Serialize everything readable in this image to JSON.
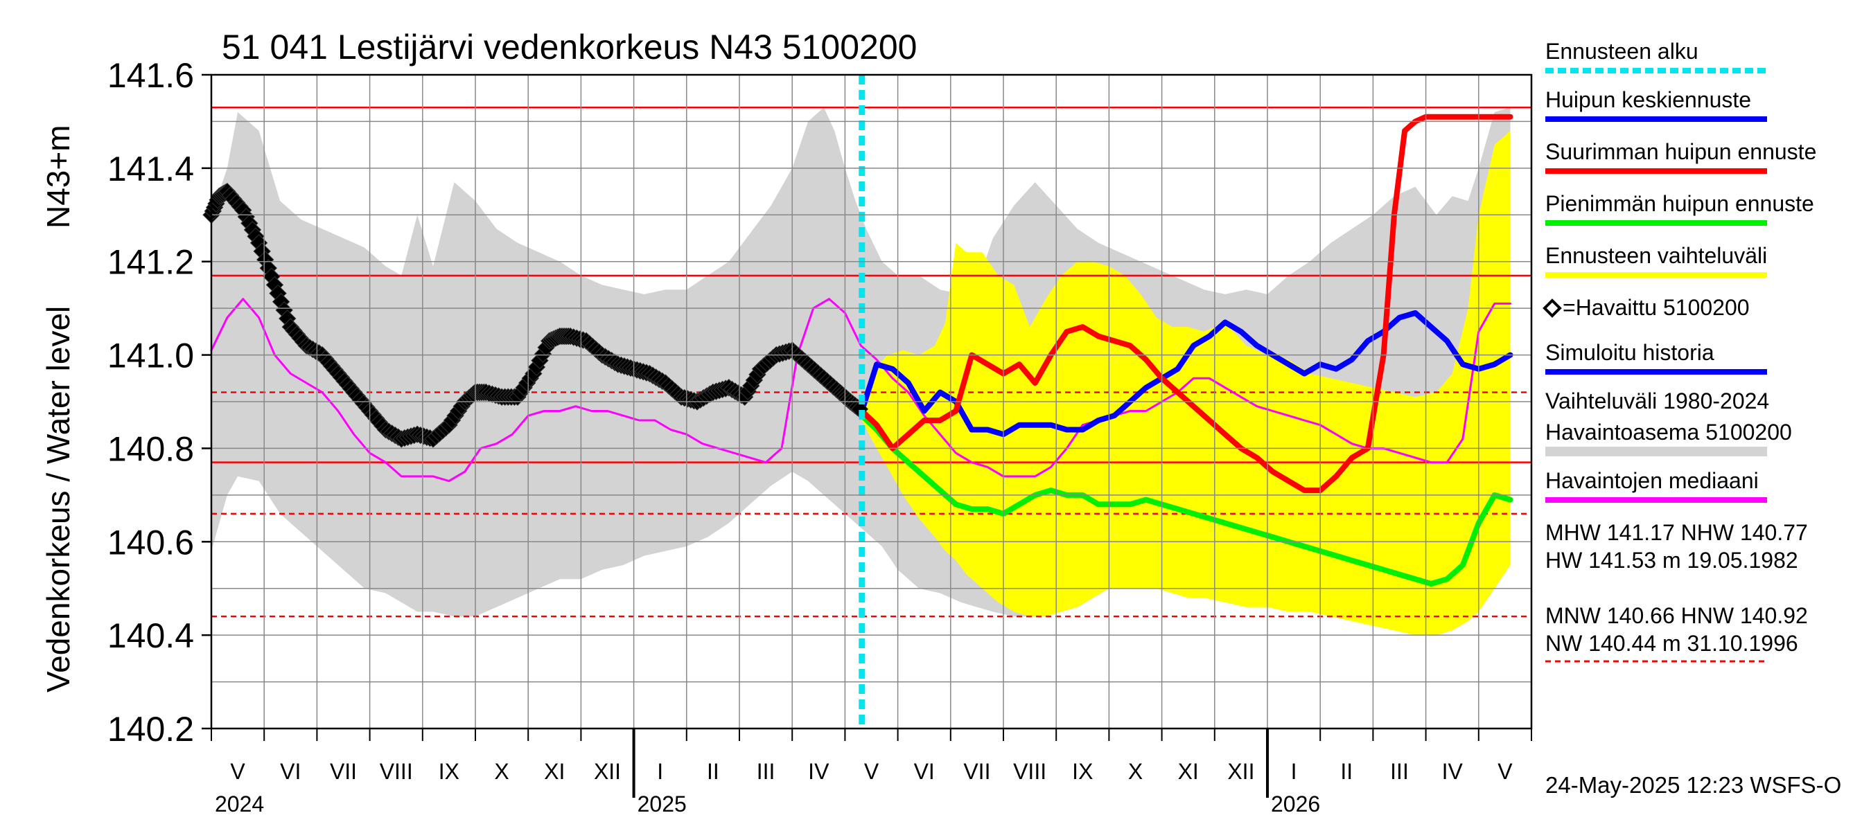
{
  "chart_data": {
    "type": "line",
    "title": "51 041 Lestijärvi vedenkorkeus N43 5100200",
    "ylabel": "Vedenkorkeus / Water level",
    "yunit": "N43+m",
    "ylim": [
      140.2,
      141.6
    ],
    "yticks": [
      "141.6",
      "141.4",
      "141.2",
      "141.0",
      "140.8",
      "140.6",
      "140.4",
      "140.2"
    ],
    "month_labels": [
      "V",
      "VI",
      "VII",
      "VIII",
      "IX",
      "X",
      "XI",
      "XII",
      "I",
      "II",
      "III",
      "IV",
      "V",
      "VI",
      "VII",
      "VIII",
      "IX",
      "X",
      "XI",
      "XII",
      "I",
      "II",
      "III",
      "IV",
      "V"
    ],
    "year_labels": [
      "2024",
      "2025",
      "2026"
    ],
    "forecast_start_month": 12.32,
    "reference_lines": [
      {
        "name": "HW",
        "value": 141.53,
        "style": "solid"
      },
      {
        "name": "MHW",
        "value": 141.17,
        "style": "solid"
      },
      {
        "name": "HNW",
        "value": 140.92,
        "style": "dashed"
      },
      {
        "name": "NHW",
        "value": 140.77,
        "style": "solid"
      },
      {
        "name": "MNW",
        "value": 140.66,
        "style": "dashed"
      },
      {
        "name": "NW",
        "value": 140.44,
        "style": "dashed"
      }
    ],
    "history_band": {
      "x": [
        0,
        0.3,
        0.5,
        0.9,
        1.3,
        1.7,
        2.1,
        2.5,
        2.9,
        3.3,
        3.6,
        3.9,
        4.2,
        4.6,
        5.0,
        5.4,
        5.8,
        6.2,
        6.6,
        7.0,
        7.4,
        7.8,
        8.2,
        8.6,
        9.0,
        9.4,
        9.8,
        10.2,
        10.6,
        11.0,
        11.3,
        11.6,
        11.8,
        12.0,
        12.2,
        12.4,
        12.7,
        13.0,
        13.4,
        13.8,
        14.2,
        14.5,
        14.8,
        15.2,
        15.6,
        16.0,
        16.4,
        16.8,
        17.2,
        17.6,
        18.0,
        18.4,
        18.8,
        19.2,
        19.6,
        20.0,
        20.4,
        20.8,
        21.2,
        21.6,
        22.0,
        22.4,
        22.8,
        23.2,
        23.5,
        23.8,
        24.0,
        24.3,
        24.6
      ],
      "upper": [
        141.3,
        141.4,
        141.52,
        141.48,
        141.33,
        141.29,
        141.27,
        141.25,
        141.23,
        141.19,
        141.17,
        141.3,
        141.19,
        141.37,
        141.33,
        141.27,
        141.24,
        141.22,
        141.2,
        141.17,
        141.15,
        141.14,
        141.13,
        141.14,
        141.14,
        141.17,
        141.2,
        141.26,
        141.32,
        141.4,
        141.5,
        141.53,
        141.48,
        141.4,
        141.33,
        141.27,
        141.2,
        141.17,
        141.17,
        141.14,
        141.13,
        141.15,
        141.25,
        141.32,
        141.37,
        141.32,
        141.27,
        141.24,
        141.22,
        141.2,
        141.18,
        141.16,
        141.14,
        141.13,
        141.14,
        141.13,
        141.17,
        141.2,
        141.24,
        141.27,
        141.3,
        141.34,
        141.36,
        141.3,
        141.34,
        141.33,
        141.4,
        141.52,
        141.53
      ],
      "lower": [
        140.58,
        140.7,
        140.74,
        140.73,
        140.66,
        140.62,
        140.58,
        140.54,
        140.5,
        140.49,
        140.47,
        140.45,
        140.45,
        140.44,
        140.44,
        140.46,
        140.48,
        140.5,
        140.52,
        140.52,
        140.54,
        140.55,
        140.57,
        140.58,
        140.59,
        140.61,
        140.64,
        140.68,
        140.72,
        140.75,
        140.73,
        140.7,
        140.68,
        140.66,
        140.64,
        140.62,
        140.59,
        140.54,
        140.5,
        140.49,
        140.47,
        140.46,
        140.45,
        140.44,
        140.44,
        140.46,
        140.48,
        140.5,
        140.51,
        140.52,
        140.52,
        140.53,
        140.54,
        140.55,
        140.56,
        140.57,
        140.58,
        140.59,
        140.6,
        140.61,
        140.62,
        140.63,
        140.64,
        140.66,
        140.68,
        140.69,
        140.72,
        140.74,
        140.75
      ]
    },
    "forecast_band": {
      "x": [
        12.32,
        12.5,
        12.8,
        13.1,
        13.4,
        13.7,
        13.9,
        14.1,
        14.3,
        14.6,
        14.9,
        15.2,
        15.5,
        15.8,
        16.1,
        16.4,
        16.7,
        17.0,
        17.3,
        17.6,
        17.9,
        18.2,
        18.5,
        18.8,
        19.2,
        19.6,
        20.0,
        20.4,
        20.8,
        21.2,
        21.6,
        22.0,
        22.4,
        22.8,
        23.2,
        23.5,
        23.8,
        24.0,
        24.3,
        24.6
      ],
      "upper": [
        140.9,
        140.96,
        141.0,
        141.01,
        141.0,
        141.02,
        141.07,
        141.24,
        141.22,
        141.22,
        141.17,
        141.15,
        141.06,
        141.12,
        141.17,
        141.2,
        141.2,
        141.19,
        141.17,
        141.13,
        141.08,
        141.06,
        141.06,
        141.05,
        141.07,
        141.02,
        141.0,
        140.99,
        140.96,
        140.95,
        140.94,
        140.93,
        140.92,
        140.91,
        140.92,
        140.96,
        141.1,
        141.3,
        141.45,
        141.48
      ],
      "lower": [
        140.86,
        140.82,
        140.76,
        140.7,
        140.65,
        140.61,
        140.58,
        140.56,
        140.53,
        140.5,
        140.47,
        140.45,
        140.44,
        140.44,
        140.45,
        140.46,
        140.48,
        140.5,
        140.5,
        140.5,
        140.5,
        140.49,
        140.48,
        140.48,
        140.47,
        140.46,
        140.46,
        140.45,
        140.45,
        140.44,
        140.43,
        140.42,
        140.41,
        140.4,
        140.4,
        140.41,
        140.43,
        140.45,
        140.5,
        140.55
      ]
    },
    "series": [
      {
        "name": "Havaittu 5100200",
        "color": "#000000",
        "marker": "diamond",
        "x": [
          0,
          0.15,
          0.3,
          0.6,
          0.9,
          1.2,
          1.5,
          1.8,
          2.1,
          2.4,
          2.7,
          3.0,
          3.3,
          3.6,
          3.9,
          4.2,
          4.5,
          4.8,
          5.0,
          5.2,
          5.5,
          5.8,
          6.1,
          6.4,
          6.6,
          6.8,
          7.1,
          7.4,
          7.7,
          8.0,
          8.3,
          8.6,
          8.9,
          9.2,
          9.5,
          9.8,
          10.1,
          10.4,
          10.7,
          11.0,
          11.3,
          11.6,
          11.9,
          12.1,
          12.32
        ],
        "y": [
          141.3,
          141.34,
          141.35,
          141.31,
          141.24,
          141.15,
          141.06,
          141.02,
          141.0,
          140.96,
          140.92,
          140.88,
          140.84,
          140.82,
          140.83,
          140.82,
          140.85,
          140.9,
          140.92,
          140.92,
          140.91,
          140.91,
          140.96,
          141.03,
          141.04,
          141.04,
          141.03,
          141.0,
          140.98,
          140.97,
          140.96,
          140.94,
          140.91,
          140.9,
          140.92,
          140.93,
          140.91,
          140.97,
          141.0,
          141.01,
          140.98,
          140.95,
          140.92,
          140.9,
          140.88
        ]
      },
      {
        "name": "Havaintojen mediaani",
        "color": "#ff00ff",
        "x": [
          0,
          0.3,
          0.6,
          0.9,
          1.2,
          1.5,
          1.8,
          2.1,
          2.4,
          2.7,
          3.0,
          3.3,
          3.6,
          3.9,
          4.2,
          4.5,
          4.8,
          5.1,
          5.4,
          5.7,
          6.0,
          6.3,
          6.6,
          6.9,
          7.2,
          7.5,
          7.8,
          8.1,
          8.4,
          8.7,
          9.0,
          9.3,
          9.6,
          9.9,
          10.2,
          10.5,
          10.8,
          11.1,
          11.4,
          11.7,
          12.0,
          12.3,
          12.6,
          12.9,
          13.2,
          13.5,
          13.8,
          14.1,
          14.4,
          14.7,
          15.0,
          15.3,
          15.6,
          15.9,
          16.2,
          16.5,
          16.8,
          17.1,
          17.4,
          17.7,
          18.0,
          18.3,
          18.6,
          18.9,
          19.2,
          19.5,
          19.8,
          20.1,
          20.4,
          20.7,
          21.0,
          21.3,
          21.6,
          21.9,
          22.2,
          22.5,
          22.8,
          23.1,
          23.4,
          23.7,
          24.0,
          24.3,
          24.6
        ],
        "y": [
          141.01,
          141.08,
          141.12,
          141.08,
          141.0,
          140.96,
          140.94,
          140.92,
          140.88,
          140.83,
          140.79,
          140.77,
          140.74,
          140.74,
          140.74,
          140.73,
          140.75,
          140.8,
          140.81,
          140.83,
          140.87,
          140.88,
          140.88,
          140.89,
          140.88,
          140.88,
          140.87,
          140.86,
          140.86,
          140.84,
          140.83,
          140.81,
          140.8,
          140.79,
          140.78,
          140.77,
          140.8,
          141.0,
          141.1,
          141.12,
          141.09,
          141.02,
          140.99,
          140.95,
          140.92,
          140.87,
          140.83,
          140.79,
          140.77,
          140.76,
          140.74,
          140.74,
          140.74,
          140.76,
          140.8,
          140.85,
          140.86,
          140.87,
          140.88,
          140.88,
          140.9,
          140.92,
          140.95,
          140.95,
          140.93,
          140.91,
          140.89,
          140.88,
          140.87,
          140.86,
          140.85,
          140.83,
          140.81,
          140.8,
          140.8,
          140.79,
          140.78,
          140.77,
          140.77,
          140.82,
          141.05,
          141.11,
          141.11
        ]
      },
      {
        "name": "Huipun keskiennuste",
        "color": "#0000ff",
        "x": [
          12.32,
          12.6,
          12.9,
          13.2,
          13.5,
          13.8,
          14.1,
          14.4,
          14.7,
          15.0,
          15.3,
          15.6,
          15.9,
          16.2,
          16.5,
          16.8,
          17.1,
          17.4,
          17.7,
          18.0,
          18.3,
          18.6,
          18.9,
          19.2,
          19.5,
          19.8,
          20.1,
          20.4,
          20.7,
          21.0,
          21.3,
          21.6,
          21.9,
          22.2,
          22.5,
          22.8,
          23.1,
          23.4,
          23.7,
          24.0,
          24.3,
          24.6
        ],
        "y": [
          140.88,
          140.98,
          140.97,
          140.94,
          140.88,
          140.92,
          140.9,
          140.84,
          140.84,
          140.83,
          140.85,
          140.85,
          140.85,
          140.84,
          140.84,
          140.86,
          140.87,
          140.9,
          140.93,
          140.95,
          140.97,
          141.02,
          141.04,
          141.07,
          141.05,
          141.02,
          141.0,
          140.98,
          140.96,
          140.98,
          140.97,
          140.99,
          141.03,
          141.05,
          141.08,
          141.09,
          141.06,
          141.03,
          140.98,
          140.97,
          140.98,
          141.0
        ]
      },
      {
        "name": "Suurimman huipun ennuste",
        "color": "#ff0000",
        "x": [
          12.32,
          12.6,
          12.9,
          13.2,
          13.5,
          13.8,
          14.1,
          14.4,
          14.7,
          15.0,
          15.3,
          15.6,
          15.9,
          16.2,
          16.5,
          16.8,
          17.1,
          17.4,
          17.7,
          18.0,
          18.3,
          18.6,
          18.9,
          19.2,
          19.5,
          19.8,
          20.1,
          20.4,
          20.7,
          21.0,
          21.3,
          21.6,
          21.9,
          22.2,
          22.4,
          22.6,
          22.8,
          23.0,
          23.2,
          23.4,
          23.6,
          23.8,
          24.0,
          24.2,
          24.4,
          24.6
        ],
        "y": [
          140.88,
          140.85,
          140.8,
          140.83,
          140.86,
          140.86,
          140.88,
          141.0,
          140.98,
          140.96,
          140.98,
          140.94,
          141.0,
          141.05,
          141.06,
          141.04,
          141.03,
          141.02,
          140.99,
          140.95,
          140.92,
          140.89,
          140.86,
          140.83,
          140.8,
          140.78,
          140.75,
          140.73,
          140.71,
          140.71,
          140.74,
          140.78,
          140.8,
          141.0,
          141.3,
          141.48,
          141.5,
          141.51,
          141.51,
          141.51,
          141.51,
          141.51,
          141.51,
          141.51,
          141.51,
          141.51
        ]
      },
      {
        "name": "Pienimmän huipun ennuste",
        "color": "#00ee00",
        "x": [
          12.32,
          12.6,
          12.9,
          13.2,
          13.5,
          13.8,
          14.1,
          14.4,
          14.7,
          15.0,
          15.3,
          15.6,
          15.9,
          16.2,
          16.5,
          16.8,
          17.1,
          17.4,
          17.7,
          18.0,
          18.3,
          18.6,
          18.9,
          19.2,
          19.5,
          19.8,
          20.1,
          20.4,
          20.7,
          21.0,
          21.3,
          21.6,
          21.9,
          22.2,
          22.5,
          22.8,
          23.1,
          23.4,
          23.7,
          24.0,
          24.3,
          24.6
        ],
        "y": [
          140.87,
          140.84,
          140.8,
          140.77,
          140.74,
          140.71,
          140.68,
          140.67,
          140.67,
          140.66,
          140.68,
          140.7,
          140.71,
          140.7,
          140.7,
          140.68,
          140.68,
          140.68,
          140.69,
          140.68,
          140.67,
          140.66,
          140.65,
          140.64,
          140.63,
          140.62,
          140.61,
          140.6,
          140.59,
          140.58,
          140.57,
          140.56,
          140.55,
          140.54,
          140.53,
          140.52,
          140.51,
          140.52,
          140.55,
          140.64,
          140.7,
          140.69
        ]
      },
      {
        "name": "Simuloitu historia",
        "color": "#0000ff",
        "x": [
          0,
          0.3,
          0.6,
          0.9,
          1.2,
          1.5,
          1.8,
          2.1,
          2.4,
          2.7,
          3.0,
          3.3,
          3.6,
          3.9,
          4.2,
          4.5,
          4.8,
          5.0,
          5.2,
          5.5,
          5.8,
          6.1,
          6.4,
          6.6,
          6.8,
          7.1,
          7.4,
          7.7,
          8.0,
          8.3,
          8.6,
          8.9,
          9.2,
          9.5,
          9.8,
          10.1,
          10.4,
          10.7,
          11.0,
          11.3,
          11.6,
          11.9,
          12.1,
          12.32
        ],
        "y": [
          141.3,
          141.35,
          141.31,
          141.24,
          141.15,
          141.06,
          141.02,
          141.0,
          140.96,
          140.92,
          140.88,
          140.84,
          140.82,
          140.83,
          140.82,
          140.85,
          140.9,
          140.92,
          140.92,
          140.91,
          140.91,
          140.96,
          141.03,
          141.04,
          141.04,
          141.03,
          141.0,
          140.98,
          140.97,
          140.96,
          140.94,
          140.91,
          140.9,
          140.92,
          140.93,
          140.91,
          140.97,
          141.0,
          141.01,
          140.98,
          140.95,
          140.92,
          140.9,
          140.88
        ]
      }
    ],
    "legend": [
      {
        "label": "Ennusteen alku",
        "color": "#00e5ee",
        "style": "dotted"
      },
      {
        "label": "Huipun keskiennuste",
        "color": "#0000ff",
        "style": "solid"
      },
      {
        "label": "Suurimman huipun ennuste",
        "color": "#ff0000",
        "style": "solid"
      },
      {
        "label": "Pienimmän huipun ennuste",
        "color": "#00ee00",
        "style": "solid"
      },
      {
        "label": "Ennusteen vaihteluväli",
        "color": "#ffff00",
        "style": "solid"
      },
      {
        "label": "=Havaittu 5100200",
        "color": "#000000",
        "style": "marker"
      },
      {
        "label": "Simuloitu historia",
        "color": "#0000ff",
        "style": "solid"
      },
      {
        "label": "Vaihteluväli 1980-2024",
        "color": "",
        "style": "none"
      },
      {
        "label": " Havaintoasema 5100200",
        "color": "#d3d3d3",
        "style": "solid"
      },
      {
        "label": "Havaintojen mediaani",
        "color": "#ff00ff",
        "style": "solid"
      }
    ],
    "stats": {
      "line1": "MHW 141.17 NHW 140.77",
      "line2": "HW 141.53 m 19.05.1982",
      "line3": "MNW 140.66 HNW 140.92",
      "line4": "NW 140.44 m 31.10.1996"
    },
    "timestamp": "24-May-2025 12:23 WSFS-O"
  }
}
